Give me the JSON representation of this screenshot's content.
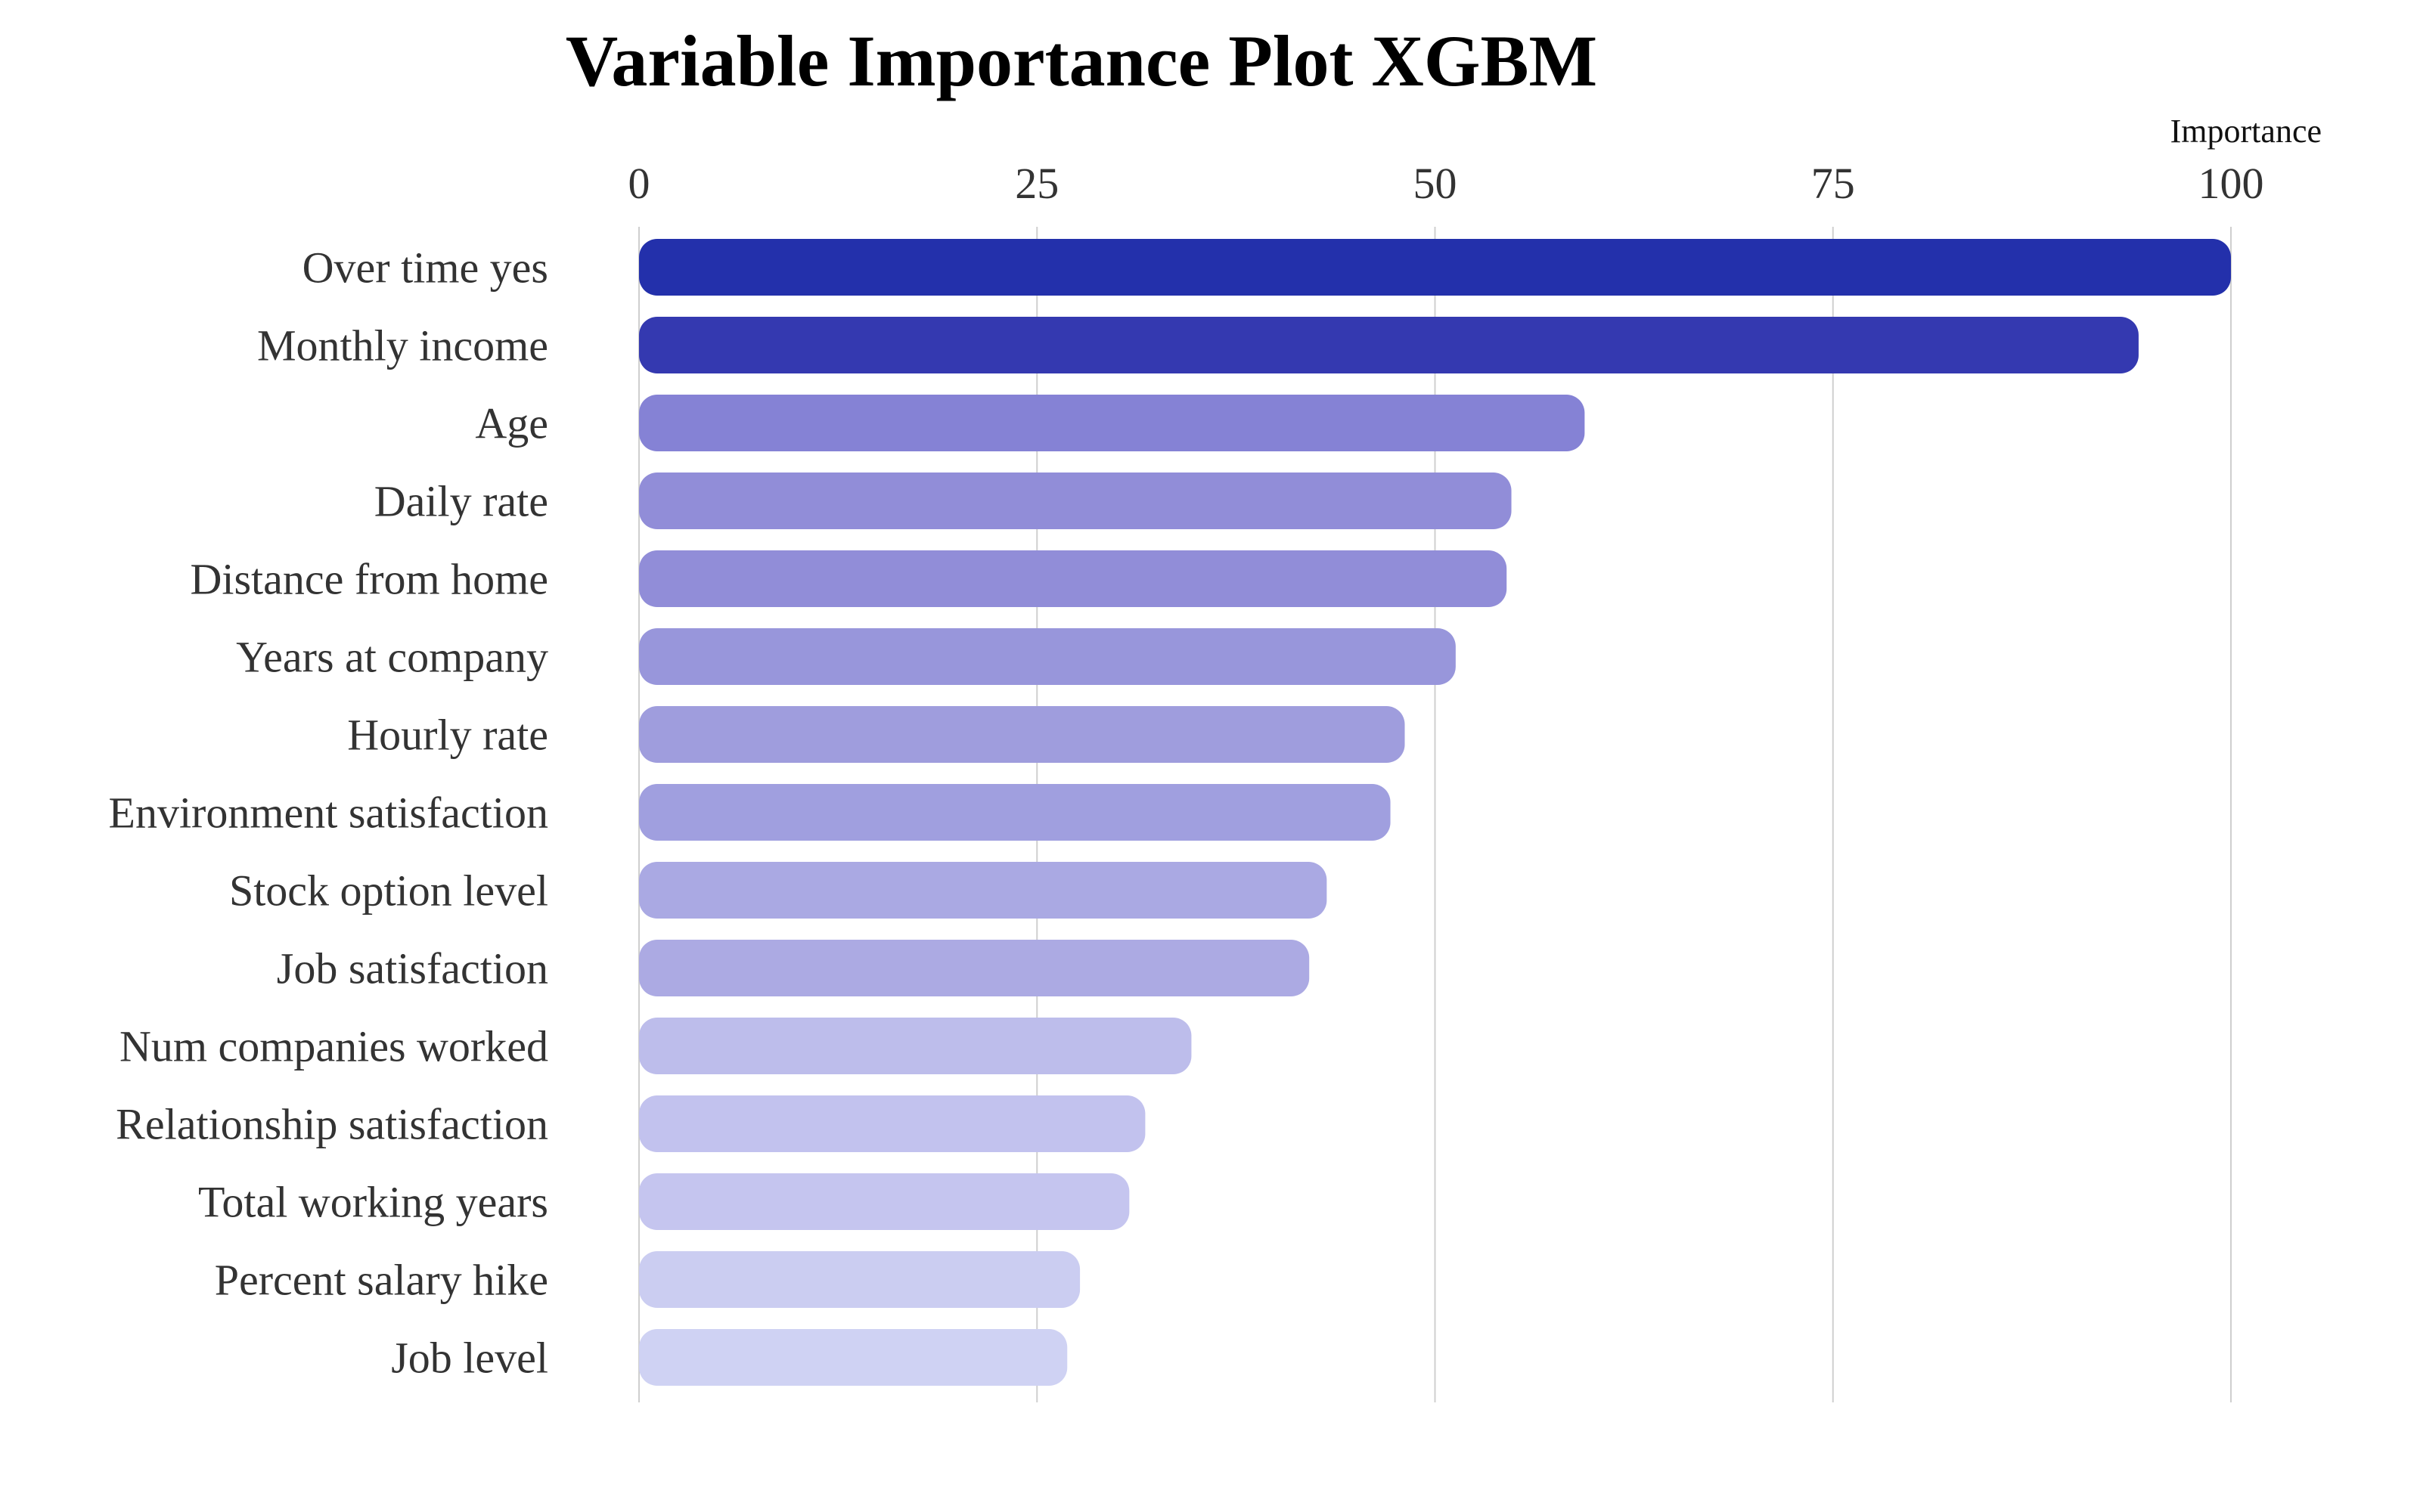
{
  "chart_data": {
    "type": "bar",
    "orientation": "horizontal",
    "title": "Variable Importance Plot XGBM",
    "xlabel": "Importance",
    "xlabel_position": "top-right",
    "x_axis_position": "top",
    "xlim": [
      0,
      100
    ],
    "xticks": [
      0,
      25,
      50,
      75,
      100
    ],
    "grid": "vertical",
    "categories": [
      "Over time yes",
      "Monthly income",
      "Age",
      "Daily rate",
      "Distance from home",
      "Years at company",
      "Hourly rate",
      "Environment satisfaction",
      "Stock option level",
      "Job satisfaction",
      "Num companies worked",
      "Relationship satisfaction",
      "Total working years",
      "Percent salary hike",
      "Job level"
    ],
    "values": [
      100,
      94.2,
      59.4,
      54.8,
      54.5,
      51.3,
      48.1,
      47.2,
      43.2,
      42.1,
      34.7,
      31.8,
      30.8,
      27.7,
      26.9
    ],
    "colors": [
      "#2330ab",
      "#3439b0",
      "#8582d5",
      "#918dd8",
      "#918dd8",
      "#9896db",
      "#9f9ddd",
      "#a09fdf",
      "#aaa9e3",
      "#acaae3",
      "#bdbdeb",
      "#c2c2ee",
      "#c5c5ef",
      "#cbcdf1",
      "#cfd2f3"
    ]
  }
}
